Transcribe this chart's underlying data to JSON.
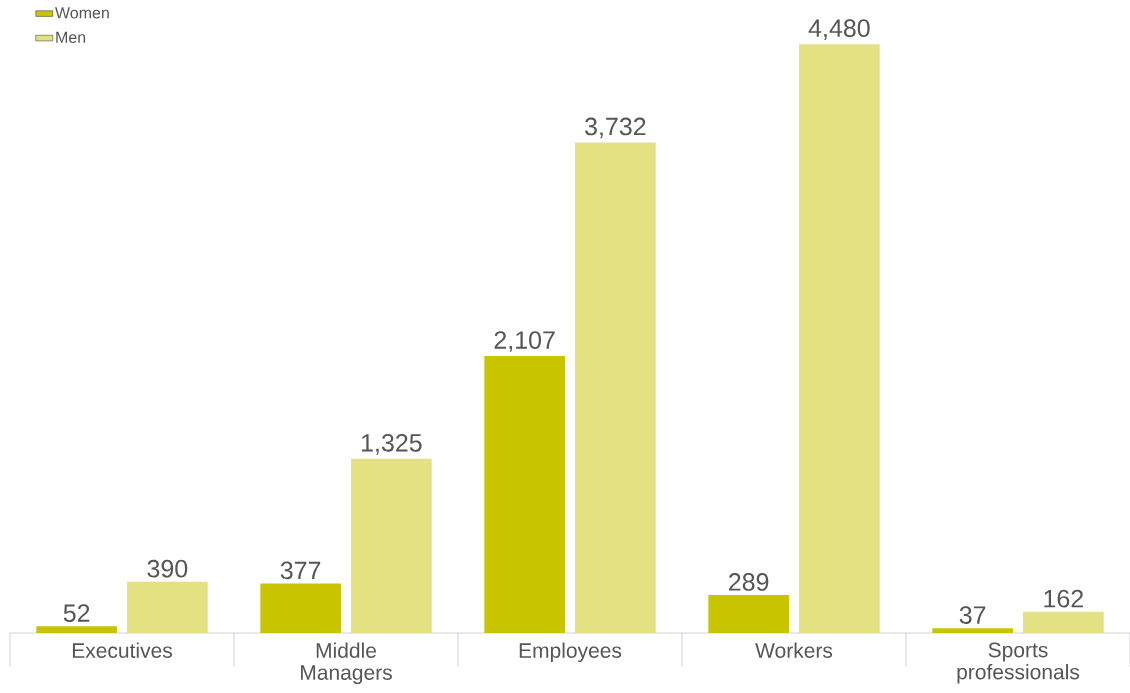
{
  "chart_data": {
    "type": "bar",
    "categories": [
      "Executives",
      "Middle Managers",
      "Employees",
      "Workers",
      "Sports professionals"
    ],
    "series": [
      {
        "name": "Women",
        "color": "#c8c400",
        "values": [
          52,
          377,
          2107,
          289,
          37
        ],
        "value_labels": [
          "52",
          "377",
          "2,107",
          "289",
          "37"
        ]
      },
      {
        "name": "Men",
        "color": "#e3e182",
        "values": [
          390,
          1325,
          3732,
          4480,
          162
        ],
        "value_labels": [
          "390",
          "1,325",
          "3,732",
          "4,480",
          "162"
        ]
      }
    ],
    "legend": "top left"
  }
}
